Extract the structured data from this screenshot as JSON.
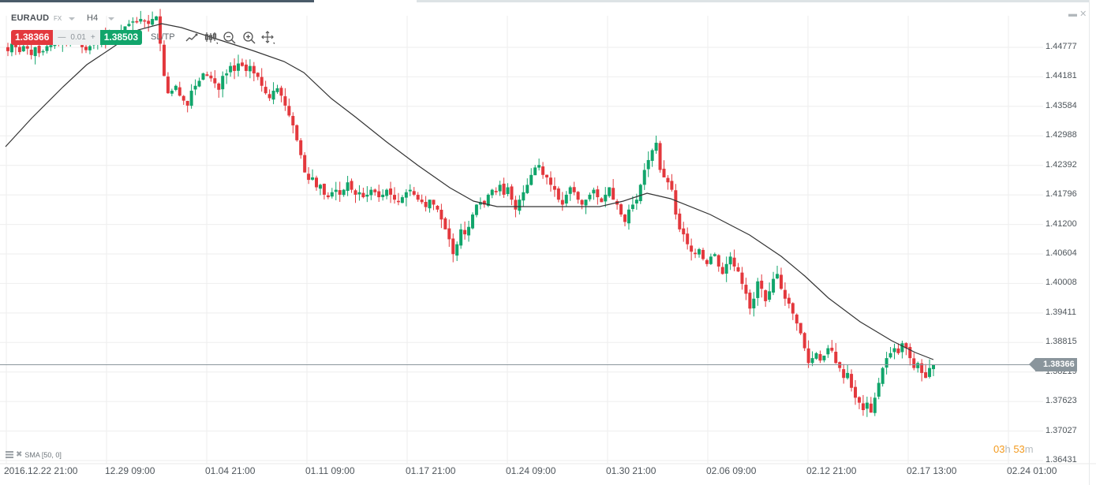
{
  "header": {
    "symbol": "EURAUD",
    "market": "FX",
    "timeframe": "H4",
    "sell_price": "1.38366",
    "lot_minus": "—",
    "lot_value": "0.01",
    "lot_plus": "+",
    "buy_price": "1.38503",
    "sltp_label": "SL/TP",
    "tools": [
      "line-chart-icon",
      "candlestick-icon",
      "zoom-out-icon",
      "zoom-in-icon",
      "pan-move-icon"
    ]
  },
  "window_controls": {
    "minimize": "▬",
    "close": "✕"
  },
  "indicator_legend": "SMA [50, 0]",
  "timer": {
    "hours": "03",
    "h_unit": "h",
    "minutes": "53",
    "m_unit": "m"
  },
  "current_price_tag": "1.38366",
  "colors": {
    "bull": "#11a56b",
    "bear": "#e3383d",
    "sma": "#333333",
    "grid": "#eeeeee",
    "price_line": "#8a959c"
  },
  "chart_data": {
    "type": "candlestick",
    "title": "EURAUD H4",
    "indicator": "SMA [50, 0]",
    "ylim": [
      1.36431,
      1.44777
    ],
    "y_ticks": [
      "1.44777",
      "1.44181",
      "1.43584",
      "1.42988",
      "1.42392",
      "1.41796",
      "1.41200",
      "1.40604",
      "1.40008",
      "1.39411",
      "1.38815",
      "1.38219",
      "1.37623",
      "1.37027",
      "1.36431"
    ],
    "x_ticks": [
      "2016.12.22 21:00",
      "12.29 09:00",
      "01.04 21:00",
      "01.11 09:00",
      "01.17 21:00",
      "01.24 09:00",
      "01.30 21:00",
      "02.06 09:00",
      "02.12 21:00",
      "02.17 13:00",
      "02.24 01:00"
    ],
    "current_price": 1.38366,
    "closes": [
      1.447,
      1.4485,
      1.4478,
      1.4468,
      1.448,
      1.4475,
      1.4462,
      1.4478,
      1.4466,
      1.447,
      1.448,
      1.4482,
      1.449,
      1.4486,
      1.4492,
      1.4488,
      1.4496,
      1.449,
      1.4485,
      1.4478,
      1.4472,
      1.448,
      1.4488,
      1.4494,
      1.4498,
      1.4492,
      1.45,
      1.4505,
      1.45,
      1.451,
      1.452,
      1.4525,
      1.453,
      1.4528,
      1.4535,
      1.453,
      1.4525,
      1.4535,
      1.454,
      1.4485,
      1.442,
      1.4385,
      1.439,
      1.44,
      1.438,
      1.437,
      1.436,
      1.439,
      1.44,
      1.441,
      1.4425,
      1.442,
      1.4415,
      1.4405,
      1.4392,
      1.442,
      1.4425,
      1.444,
      1.443,
      1.4445,
      1.444,
      1.443,
      1.444,
      1.4425,
      1.4418,
      1.44,
      1.4385,
      1.4375,
      1.439,
      1.4395,
      1.438,
      1.436,
      1.434,
      1.432,
      1.429,
      1.426,
      1.4225,
      1.421,
      1.4215,
      1.4195,
      1.42,
      1.418,
      1.4175,
      1.4185,
      1.419,
      1.418,
      1.419,
      1.4205,
      1.419,
      1.418,
      1.4185,
      1.4175,
      1.418,
      1.419,
      1.4185,
      1.4175,
      1.418,
      1.419,
      1.418,
      1.417,
      1.4165,
      1.4175,
      1.4185,
      1.419,
      1.418,
      1.417,
      1.4165,
      1.4155,
      1.417,
      1.416,
      1.415,
      1.413,
      1.411,
      1.409,
      1.406,
      1.408,
      1.411,
      1.41,
      1.4115,
      1.414,
      1.416,
      1.4165,
      1.416,
      1.418,
      1.419,
      1.4185,
      1.42,
      1.418,
      1.4195,
      1.417,
      1.415,
      1.417,
      1.4185,
      1.42,
      1.422,
      1.4235,
      1.424,
      1.422,
      1.4215,
      1.42,
      1.419,
      1.417,
      1.416,
      1.418,
      1.4195,
      1.4185,
      1.417,
      1.416,
      1.417,
      1.418,
      1.419,
      1.4175,
      1.4165,
      1.418,
      1.4195,
      1.417,
      1.416,
      1.414,
      1.4125,
      1.415,
      1.416,
      1.417,
      1.42,
      1.423,
      1.425,
      1.427,
      1.4285,
      1.423,
      1.4215,
      1.4205,
      1.419,
      1.414,
      1.411,
      1.41,
      1.408,
      1.4065,
      1.406,
      1.407,
      1.405,
      1.404,
      1.4055,
      1.406,
      1.4035,
      1.402,
      1.404,
      1.4055,
      1.4035,
      1.4025,
      1.4,
      1.398,
      1.395,
      1.397,
      1.4005,
      1.399,
      1.3965,
      1.3985,
      1.401,
      1.402,
      1.399,
      1.397,
      1.396,
      1.394,
      1.392,
      1.39,
      1.387,
      1.384,
      1.385,
      1.386,
      1.3845,
      1.3855,
      1.387,
      1.3865,
      1.384,
      1.383,
      1.381,
      1.382,
      1.379,
      1.377,
      1.376,
      1.3745,
      1.376,
      1.374,
      1.377,
      1.38,
      1.383,
      1.385,
      1.386,
      1.387,
      1.386,
      1.388,
      1.387,
      1.385,
      1.383,
      1.384,
      1.382,
      1.381,
      1.383,
      1.3837
    ]
  }
}
